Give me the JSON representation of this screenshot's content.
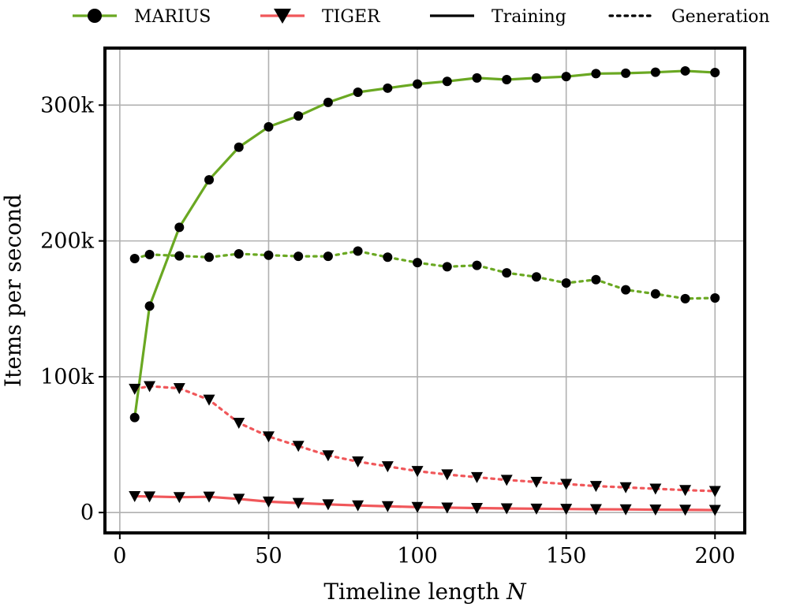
{
  "chart_data": {
    "type": "line",
    "title": "",
    "xlabel": "Timeline length",
    "xlabel_var": "N",
    "ylabel": "Items per second",
    "xlim": [
      -5,
      210
    ],
    "ylim": [
      -15000,
      342000
    ],
    "grid": true,
    "x_ticks": [
      {
        "value": 0,
        "label": "0"
      },
      {
        "value": 50,
        "label": "50"
      },
      {
        "value": 100,
        "label": "100"
      },
      {
        "value": 150,
        "label": "150"
      },
      {
        "value": 200,
        "label": "200"
      }
    ],
    "y_ticks": [
      {
        "value": 0,
        "label": "0"
      },
      {
        "value": 100000,
        "label": "100k"
      },
      {
        "value": 200000,
        "label": "200k"
      },
      {
        "value": 300000,
        "label": "300k"
      }
    ],
    "x": [
      5,
      10,
      20,
      30,
      40,
      50,
      60,
      70,
      80,
      90,
      100,
      110,
      120,
      130,
      140,
      150,
      160,
      170,
      180,
      190,
      200
    ],
    "series": [
      {
        "name": "MARIUS Training",
        "model": "MARIUS",
        "mode": "Training",
        "color": "#6aa822",
        "marker": "circle",
        "dash": "solid",
        "values": [
          70000,
          152000,
          210000,
          245000,
          269000,
          284000,
          292000,
          302000,
          309500,
          312500,
          315500,
          317500,
          320000,
          318800,
          320000,
          321000,
          323200,
          323500,
          324200,
          325200,
          324000
        ]
      },
      {
        "name": "MARIUS Generation",
        "model": "MARIUS",
        "mode": "Generation",
        "color": "#6aa822",
        "marker": "circle",
        "dash": "dotted",
        "values": [
          187000,
          190000,
          189000,
          188000,
          190500,
          189500,
          188700,
          188700,
          192500,
          188000,
          184000,
          181000,
          182000,
          176500,
          173500,
          169000,
          171500,
          164000,
          161000,
          157500,
          158000
        ]
      },
      {
        "name": "TIGER Training",
        "model": "TIGER",
        "mode": "Training",
        "color": "#f0575a",
        "marker": "triangle-down",
        "dash": "solid",
        "values": [
          12000,
          11800,
          11300,
          11600,
          10000,
          8000,
          7000,
          6000,
          5200,
          4600,
          4000,
          3600,
          3300,
          3000,
          2800,
          2600,
          2400,
          2300,
          2100,
          2000,
          1800
        ]
      },
      {
        "name": "TIGER Generation",
        "model": "TIGER",
        "mode": "Generation",
        "color": "#f0575a",
        "marker": "triangle-down",
        "dash": "dotted",
        "values": [
          91000,
          93000,
          91500,
          83000,
          66000,
          56000,
          49000,
          42000,
          37500,
          34000,
          30500,
          28000,
          26000,
          24000,
          22500,
          21000,
          19500,
          18500,
          17500,
          16500,
          15800
        ]
      }
    ],
    "legend": {
      "placement": "top",
      "entries": [
        {
          "label": "MARIUS",
          "color": "#6aa822",
          "marker": "circle",
          "dash": "solid"
        },
        {
          "label": "TIGER",
          "color": "#f0575a",
          "marker": "triangle-down",
          "dash": "solid"
        },
        {
          "label": "Training",
          "color": "#000000",
          "marker": "none",
          "dash": "solid"
        },
        {
          "label": "Generation",
          "color": "#000000",
          "marker": "none",
          "dash": "dotted"
        }
      ]
    }
  }
}
